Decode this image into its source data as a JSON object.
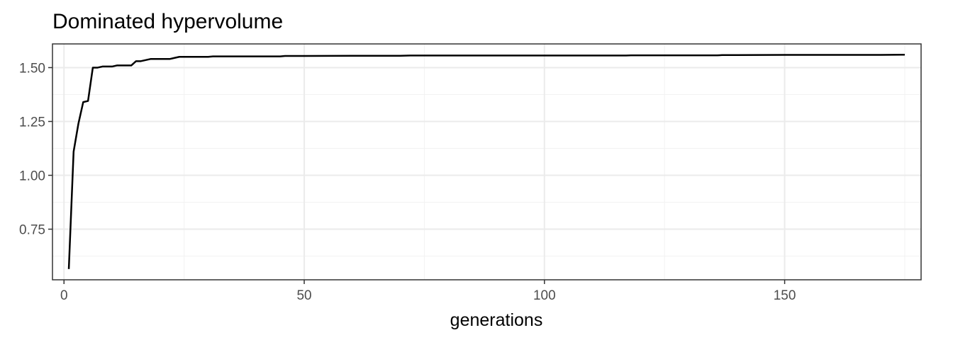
{
  "chart_data": {
    "type": "line",
    "title": "Dominated hypervolume",
    "xlabel": "generations",
    "ylabel": "",
    "xlim": [
      -2.4,
      178.4
    ],
    "ylim": [
      0.515,
      1.61
    ],
    "xticks": [
      0,
      50,
      100,
      150
    ],
    "xtick_labels": [
      "0",
      "50",
      "100",
      "150"
    ],
    "yticks": [
      0.75,
      1.0,
      1.25,
      1.5
    ],
    "ytick_labels": [
      "0.75",
      "1.00",
      "1.25",
      "1.50"
    ],
    "x_minor": [
      25,
      75,
      125,
      175
    ],
    "y_minor": [
      0.625,
      0.875,
      1.125,
      1.375
    ],
    "grid": true,
    "legend": "none",
    "line_color": "#000000",
    "series": [
      {
        "x": [
          1,
          2,
          3,
          4,
          5,
          6,
          7,
          8,
          9,
          10,
          11,
          12,
          13,
          14,
          15,
          16,
          17,
          18,
          20,
          22,
          23,
          24,
          25,
          30,
          31,
          35,
          40,
          45,
          46,
          50,
          60,
          70,
          72,
          80,
          90,
          100,
          110,
          117,
          118,
          125,
          130,
          136,
          137,
          140,
          150,
          160,
          170,
          175
        ],
        "y": [
          0.565,
          1.11,
          1.24,
          1.34,
          1.345,
          1.5,
          1.5,
          1.505,
          1.505,
          1.505,
          1.51,
          1.51,
          1.51,
          1.51,
          1.53,
          1.53,
          1.535,
          1.54,
          1.54,
          1.54,
          1.545,
          1.55,
          1.55,
          1.55,
          1.552,
          1.552,
          1.552,
          1.552,
          1.554,
          1.554,
          1.555,
          1.555,
          1.556,
          1.556,
          1.556,
          1.556,
          1.556,
          1.556,
          1.557,
          1.557,
          1.557,
          1.557,
          1.558,
          1.558,
          1.559,
          1.559,
          1.559,
          1.56
        ]
      }
    ]
  }
}
